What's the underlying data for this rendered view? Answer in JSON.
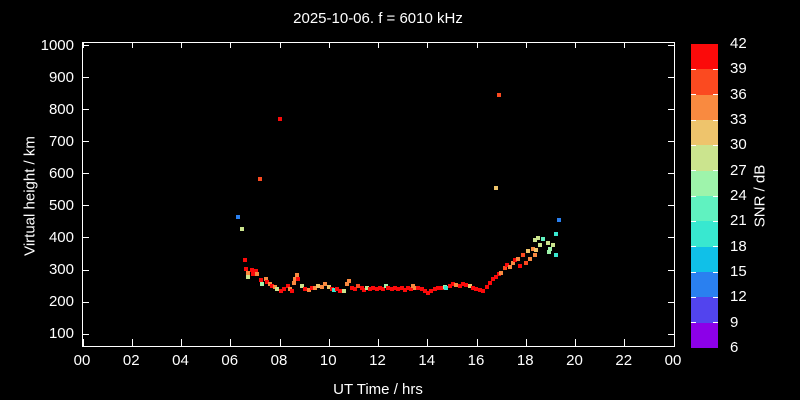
{
  "title": "2025-10-06. f = 6010 kHz",
  "background_color": "#000000",
  "foreground_color": "#ffffff",
  "chart_data": {
    "type": "scatter",
    "title": "2025-10-06. f = 6010 kHz",
    "xlabel": "UT Time / hrs",
    "ylabel": "Virtual height / km",
    "xlim": [
      0,
      24
    ],
    "ylim": [
      63,
      1008
    ],
    "grid": false,
    "xticks": {
      "values": [
        0,
        2,
        4,
        6,
        8,
        10,
        12,
        14,
        16,
        18,
        20,
        22,
        24
      ],
      "labels": [
        "00",
        "02",
        "04",
        "06",
        "08",
        "10",
        "12",
        "14",
        "16",
        "18",
        "20",
        "22",
        "00"
      ]
    },
    "yticks": [
      100,
      200,
      300,
      400,
      500,
      600,
      700,
      800,
      900,
      1000
    ],
    "colorbar": {
      "label": "SNR / dB",
      "min": 6,
      "max": 42,
      "step": 3,
      "tick_labels": [
        "42",
        "39",
        "36",
        "33",
        "30",
        "27",
        "24",
        "21",
        "18",
        "15",
        "12",
        "9",
        "6"
      ],
      "colors": [
        "#8c00e8",
        "#5244ee",
        "#2a80f0",
        "#10c0e8",
        "#38e8d0",
        "#60f2c0",
        "#9ef4ab",
        "#cbe48e",
        "#eec46c",
        "#f98a40",
        "#fb4a20",
        "#fb0a0a"
      ]
    },
    "point_units": [
      "ut_hours",
      "virtual_height_km",
      "snr_db"
    ],
    "points": [
      [
        6.31,
        466,
        13
      ],
      [
        6.47,
        428,
        28
      ],
      [
        7.18,
        583,
        38
      ],
      [
        8.01,
        770,
        41
      ],
      [
        16.78,
        555,
        32
      ],
      [
        16.89,
        845,
        37
      ],
      [
        6.56,
        330,
        40
      ],
      [
        6.61,
        302,
        40
      ],
      [
        6.71,
        290,
        34
      ],
      [
        6.72,
        279,
        28
      ],
      [
        6.88,
        299,
        40
      ],
      [
        6.92,
        288,
        40
      ],
      [
        7.04,
        296,
        40
      ],
      [
        7.08,
        286,
        35
      ],
      [
        7.21,
        268,
        40
      ],
      [
        7.28,
        257,
        26
      ],
      [
        7.42,
        271,
        34
      ],
      [
        7.49,
        263,
        40
      ],
      [
        7.58,
        257,
        34
      ],
      [
        7.69,
        250,
        40
      ],
      [
        7.8,
        247,
        34
      ],
      [
        7.89,
        242,
        29
      ],
      [
        8.04,
        234,
        40
      ],
      [
        8.15,
        240,
        40
      ],
      [
        8.31,
        250,
        40
      ],
      [
        8.42,
        242,
        35
      ],
      [
        8.49,
        234,
        40
      ],
      [
        8.58,
        260,
        34
      ],
      [
        8.62,
        273,
        35
      ],
      [
        8.69,
        283,
        34
      ],
      [
        8.75,
        271,
        40
      ],
      [
        8.89,
        250,
        28
      ],
      [
        9.03,
        240,
        40
      ],
      [
        9.16,
        237,
        35
      ],
      [
        9.3,
        245,
        40
      ],
      [
        9.43,
        243,
        34
      ],
      [
        9.56,
        250,
        31
      ],
      [
        9.7,
        248,
        35
      ],
      [
        9.83,
        255,
        34
      ],
      [
        9.97,
        248,
        31
      ],
      [
        10.1,
        242,
        40
      ],
      [
        10.2,
        237,
        20
      ],
      [
        10.31,
        240,
        40
      ],
      [
        10.44,
        234,
        40
      ],
      [
        10.55,
        233,
        40
      ],
      [
        10.58,
        233,
        28
      ],
      [
        10.71,
        255,
        34
      ],
      [
        10.82,
        265,
        35
      ],
      [
        10.91,
        245,
        40
      ],
      [
        11.05,
        240,
        40
      ],
      [
        11.18,
        250,
        37
      ],
      [
        11.32,
        245,
        40
      ],
      [
        11.41,
        237,
        40
      ],
      [
        11.55,
        245,
        28
      ],
      [
        11.66,
        242,
        40
      ],
      [
        11.79,
        245,
        40
      ],
      [
        11.93,
        240,
        40
      ],
      [
        12.06,
        245,
        40
      ],
      [
        12.2,
        242,
        40
      ],
      [
        12.31,
        250,
        25
      ],
      [
        12.4,
        245,
        40
      ],
      [
        12.54,
        242,
        40
      ],
      [
        12.67,
        245,
        40
      ],
      [
        12.8,
        242,
        40
      ],
      [
        12.94,
        243,
        40
      ],
      [
        13.07,
        237,
        40
      ],
      [
        13.21,
        243,
        40
      ],
      [
        13.34,
        240,
        40
      ],
      [
        13.41,
        250,
        34
      ],
      [
        13.5,
        243,
        34
      ],
      [
        13.61,
        245,
        40
      ],
      [
        13.75,
        240,
        40
      ],
      [
        13.88,
        234,
        40
      ],
      [
        14.02,
        229,
        40
      ],
      [
        14.15,
        234,
        40
      ],
      [
        14.29,
        240,
        40
      ],
      [
        14.42,
        243,
        40
      ],
      [
        14.56,
        245,
        40
      ],
      [
        14.69,
        247,
        25
      ],
      [
        14.76,
        243,
        20
      ],
      [
        14.89,
        250,
        40
      ],
      [
        15.03,
        255,
        40
      ],
      [
        15.16,
        253,
        35
      ],
      [
        15.3,
        250,
        40
      ],
      [
        15.43,
        255,
        40
      ],
      [
        15.57,
        253,
        40
      ],
      [
        15.7,
        250,
        31
      ],
      [
        15.84,
        243,
        40
      ],
      [
        15.97,
        240,
        40
      ],
      [
        16.11,
        237,
        40
      ],
      [
        16.24,
        236,
        40
      ],
      [
        16.39,
        246,
        40
      ],
      [
        16.51,
        261,
        40
      ],
      [
        16.63,
        271,
        40
      ],
      [
        16.76,
        277,
        40
      ],
      [
        16.88,
        286,
        40
      ],
      [
        16.99,
        290,
        34
      ],
      [
        17.12,
        307,
        37
      ],
      [
        17.2,
        316,
        40
      ],
      [
        17.32,
        309,
        34
      ],
      [
        17.46,
        322,
        34
      ],
      [
        17.53,
        330,
        40
      ],
      [
        17.66,
        334,
        34
      ],
      [
        17.73,
        313,
        40
      ],
      [
        17.86,
        348,
        37
      ],
      [
        18.0,
        322,
        37
      ],
      [
        18.07,
        358,
        32
      ],
      [
        18.14,
        333,
        34
      ],
      [
        18.27,
        364,
        34
      ],
      [
        18.34,
        348,
        34
      ],
      [
        18.36,
        393,
        29
      ],
      [
        18.41,
        362,
        31
      ],
      [
        18.47,
        400,
        29
      ],
      [
        18.54,
        379,
        28
      ],
      [
        18.67,
        397,
        21
      ],
      [
        18.88,
        384,
        28
      ],
      [
        18.94,
        355,
        25
      ],
      [
        18.97,
        364,
        25
      ],
      [
        19.08,
        379,
        28
      ],
      [
        19.19,
        413,
        20
      ],
      [
        19.22,
        348,
        20
      ],
      [
        19.32,
        455,
        13
      ]
    ]
  }
}
